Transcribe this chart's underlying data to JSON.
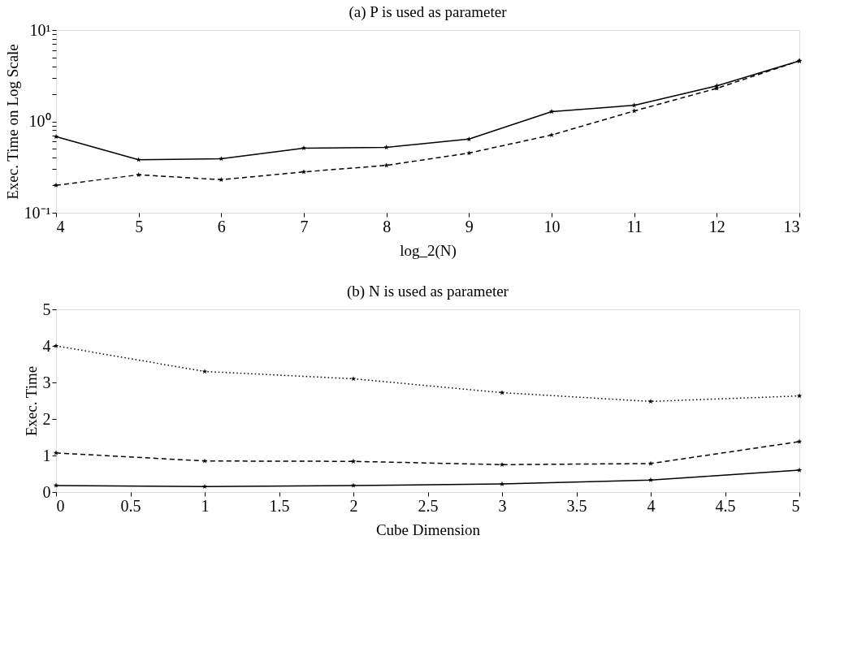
{
  "chart_data": [
    {
      "type": "line",
      "title": "(a) P is used as parameter",
      "xlabel": "log_2(N)",
      "ylabel": "Exec. Time on Log Scale",
      "log": "y",
      "marker": "star",
      "grid": false,
      "x": [
        4,
        5,
        6,
        7,
        8,
        9,
        10,
        11,
        12,
        13
      ],
      "series": [
        {
          "color": "#000000",
          "line_style": "solid",
          "values": [
            0.68,
            0.38,
            0.39,
            0.51,
            0.52,
            0.64,
            1.28,
            1.5,
            2.45,
            4.6
          ]
        },
        {
          "color": "#000000",
          "line_style": "dashed",
          "values": [
            0.2,
            0.26,
            0.23,
            0.28,
            0.33,
            0.45,
            0.71,
            1.3,
            2.3,
            4.6
          ]
        }
      ],
      "xlim": [
        4,
        13
      ],
      "xticks": [
        4,
        5,
        6,
        7,
        8,
        9,
        10,
        11,
        12,
        13
      ],
      "ylim": [
        0.1,
        10
      ],
      "yticks": [
        {
          "value": 0.1,
          "label": "10⁻¹"
        },
        {
          "value": 0.2,
          "label": null
        },
        {
          "value": 0.3,
          "label": null
        },
        {
          "value": 0.4,
          "label": null
        },
        {
          "value": 0.5,
          "label": null
        },
        {
          "value": 0.6,
          "label": null
        },
        {
          "value": 0.7,
          "label": null
        },
        {
          "value": 0.8,
          "label": null
        },
        {
          "value": 0.9,
          "label": null
        },
        {
          "value": 1,
          "label": "10⁰"
        },
        {
          "value": 2,
          "label": null
        },
        {
          "value": 3,
          "label": null
        },
        {
          "value": 4,
          "label": null
        },
        {
          "value": 5,
          "label": null
        },
        {
          "value": 6,
          "label": null
        },
        {
          "value": 7,
          "label": null
        },
        {
          "value": 8,
          "label": null
        },
        {
          "value": 9,
          "label": null
        },
        {
          "value": 10,
          "label": "10¹"
        }
      ]
    },
    {
      "type": "line",
      "title": "(b) N is used as parameter",
      "xlabel": "Cube Dimension",
      "ylabel": "Exec. Time",
      "marker": "star",
      "grid": false,
      "x": [
        0,
        1,
        2,
        3,
        4,
        5
      ],
      "series": [
        {
          "color": "#000000",
          "line_style": "dotted",
          "values": [
            4.0,
            3.3,
            3.1,
            2.72,
            2.48,
            2.63
          ]
        },
        {
          "color": "#000000",
          "line_style": "dashed",
          "values": [
            1.07,
            0.85,
            0.84,
            0.75,
            0.78,
            1.38
          ]
        },
        {
          "color": "#000000",
          "line_style": "solid",
          "values": [
            0.18,
            0.15,
            0.18,
            0.22,
            0.33,
            0.6
          ]
        }
      ],
      "xlim": [
        0,
        5
      ],
      "xticks": [
        0,
        0.5,
        1,
        1.5,
        2,
        2.5,
        3,
        3.5,
        4,
        4.5,
        5
      ],
      "ylim": [
        0,
        5
      ],
      "yticks": [
        0,
        1,
        2,
        3,
        4,
        5
      ]
    }
  ]
}
